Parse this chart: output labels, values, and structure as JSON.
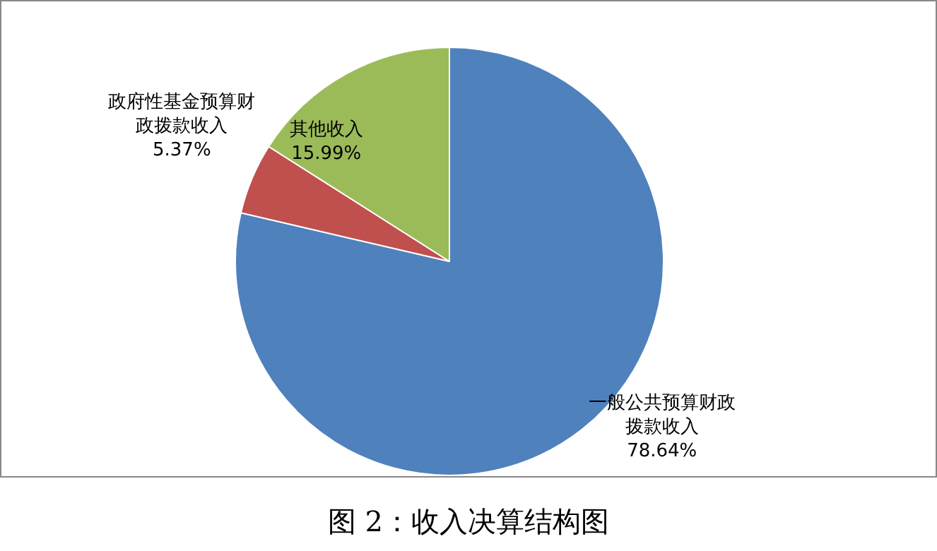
{
  "chart_data": {
    "type": "pie",
    "title": "图 2：收入决算结构图",
    "categories": [
      "一般公共预算财政拨款收入",
      "政府性基金预算财政拨款收入",
      "其他收入"
    ],
    "values": [
      78.64,
      5.37,
      15.99
    ],
    "colors": [
      "#4f81bd",
      "#c0504d",
      "#9bbb59"
    ],
    "value_labels": [
      "78.64%",
      "5.37%",
      "15.99%"
    ],
    "legend": false
  }
}
